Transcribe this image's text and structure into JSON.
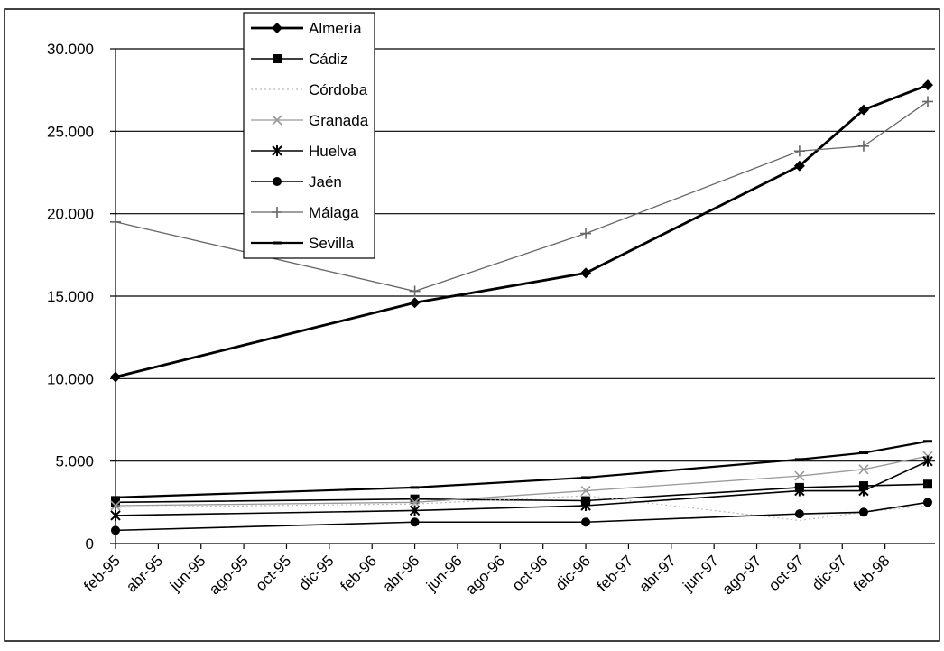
{
  "chart_data": {
    "type": "line",
    "title": "",
    "xlabel": "",
    "ylabel": "",
    "ylim": [
      0,
      30000
    ],
    "y_ticks": [
      0,
      5000,
      10000,
      15000,
      20000,
      25000,
      30000
    ],
    "y_tick_labels": [
      "0",
      "5.000",
      "10.000",
      "15.000",
      "20.000",
      "25.000",
      "30.000"
    ],
    "x_tick_labels": [
      "feb-95",
      "abr-95",
      "jun-95",
      "ago-95",
      "oct-95",
      "dic-95",
      "feb-96",
      "abr-96",
      "jun-96",
      "ago-96",
      "oct-96",
      "dic-96",
      "feb-97",
      "abr-97",
      "jun-97",
      "ago-97",
      "oct-97",
      "dic-97",
      "feb-98"
    ],
    "x_range": [
      "1995-02",
      "1998-04"
    ],
    "grid": "horizontal",
    "legend_position": "top-center",
    "x": [
      "1995-02",
      "1996-04",
      "1996-12",
      "1997-10",
      "1998-01",
      "1998-04"
    ],
    "series": [
      {
        "name": "Almería",
        "marker": "diamond",
        "color": "#000000",
        "values": [
          10100,
          14600,
          16400,
          22900,
          26300,
          27800
        ]
      },
      {
        "name": "Cádiz",
        "marker": "square",
        "color": "#000000",
        "values": [
          2500,
          2700,
          2600,
          3400,
          3500,
          3600
        ]
      },
      {
        "name": "Córdoba",
        "marker": "none",
        "color": "#bbbbbb",
        "values": [
          2200,
          2400,
          2900,
          1400,
          1900,
          2300
        ]
      },
      {
        "name": "Granada",
        "marker": "x",
        "color": "#999999",
        "values": [
          2300,
          2500,
          3200,
          4100,
          4500,
          5300
        ]
      },
      {
        "name": "Huelva",
        "marker": "asterisk",
        "color": "#000000",
        "values": [
          1700,
          2000,
          2300,
          3200,
          3200,
          5000
        ]
      },
      {
        "name": "Jaén",
        "marker": "circle",
        "color": "#000000",
        "values": [
          800,
          1300,
          1300,
          1800,
          1900,
          2500
        ]
      },
      {
        "name": "Málaga",
        "marker": "plus",
        "color": "#666666",
        "values": [
          19500,
          15300,
          18800,
          23800,
          24100,
          26800
        ]
      },
      {
        "name": "Sevilla",
        "marker": "dash",
        "color": "#000000",
        "values": [
          2800,
          3400,
          4000,
          5100,
          5500,
          6200
        ]
      }
    ]
  }
}
